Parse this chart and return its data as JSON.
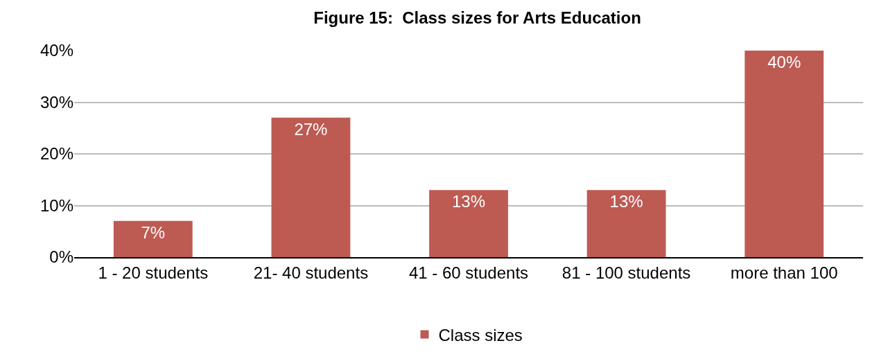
{
  "chart_data": {
    "type": "bar",
    "title": "Figure 15:  Class sizes for Arts Education",
    "categories": [
      "1 - 20 students",
      "21- 40 students",
      "41 - 60 students",
      "81 - 100 students",
      "more than 100"
    ],
    "series": [
      {
        "name": "Class sizes",
        "color": "#bd5a52",
        "values": [
          7,
          27,
          13,
          13,
          40
        ],
        "value_labels": [
          "7%",
          "27%",
          "13%",
          "13%",
          "40%"
        ]
      }
    ],
    "ylim": [
      0,
      40
    ],
    "yticks": [
      {
        "value": 0,
        "label": "0%"
      },
      {
        "value": 10,
        "label": "10%"
      },
      {
        "value": 20,
        "label": "20%"
      },
      {
        "value": 30,
        "label": "30%"
      },
      {
        "value": 40,
        "label": "40%"
      }
    ],
    "grid": "y",
    "legend": "bottom"
  }
}
